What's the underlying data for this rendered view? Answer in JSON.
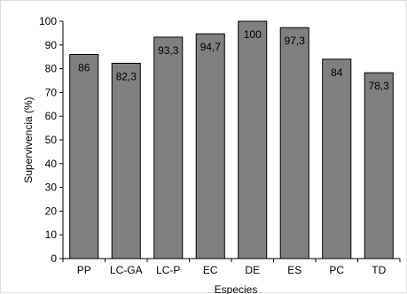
{
  "chart_data": {
    "type": "bar",
    "categories": [
      "PP",
      "LC-GA",
      "LC-P",
      "EC",
      "DE",
      "ES",
      "PC",
      "TD"
    ],
    "values": [
      86,
      82.3,
      93.3,
      94.7,
      100,
      97.3,
      84,
      78.3
    ],
    "data_labels": [
      "86",
      "82,3",
      "93,3",
      "94,7",
      "100",
      "97,3",
      "84",
      "78,3"
    ],
    "xlabel": "Especies",
    "ylabel": "Supervivencia  (%)",
    "ylim": [
      0,
      100
    ],
    "y_ticks": [
      0,
      10,
      20,
      30,
      40,
      50,
      60,
      70,
      80,
      90,
      100
    ],
    "bar_color": "#808080",
    "grid": false,
    "legend": "none"
  }
}
